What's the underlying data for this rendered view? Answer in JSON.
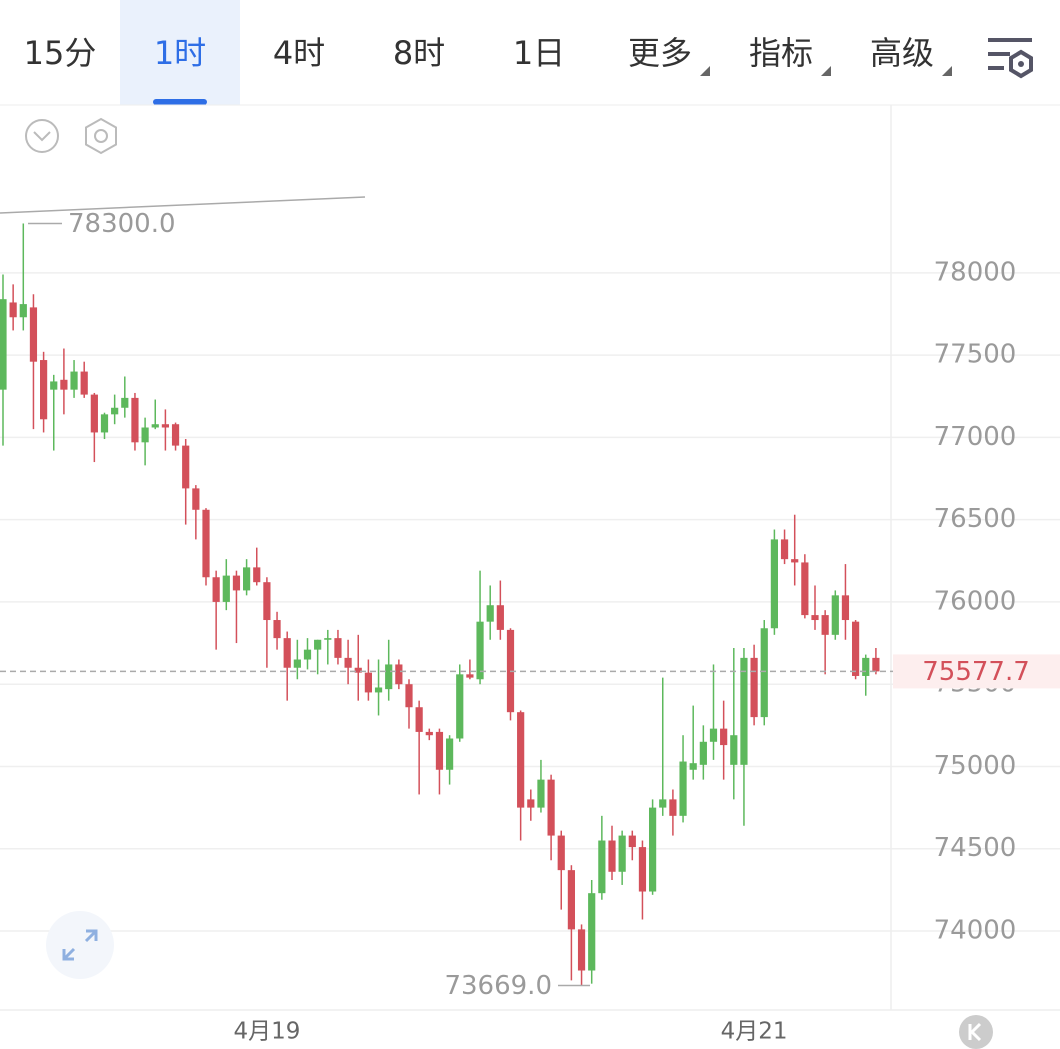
{
  "toolbar": {
    "tabs": [
      "15分",
      "1时",
      "4时",
      "8时",
      "1日",
      "更多",
      "指标",
      "高级"
    ],
    "active": 1
  },
  "chart_data": {
    "type": "candlestick",
    "categories": [
      null,
      null,
      null,
      null,
      null,
      null,
      null,
      null,
      null,
      null,
      null,
      null,
      null,
      null,
      null,
      null,
      null,
      null,
      null,
      null,
      null,
      null,
      null,
      null,
      null,
      null,
      "4月19",
      null,
      null,
      null,
      null,
      null,
      null,
      null,
      null,
      null,
      null,
      null,
      null,
      null,
      null,
      null,
      null,
      null,
      null,
      null,
      null,
      null,
      null,
      null,
      null,
      null,
      null,
      null,
      null,
      null,
      null,
      null,
      null,
      null,
      null,
      null,
      null,
      null,
      null,
      null,
      null,
      null,
      null,
      null,
      null,
      null,
      null,
      null,
      "4月21",
      null,
      null,
      null,
      null,
      null,
      null,
      null,
      null,
      null,
      null,
      null,
      null
    ],
    "open": [
      77290,
      77820,
      77730,
      77790,
      77470,
      77290,
      77350,
      77290,
      77400,
      77260,
      77030,
      77140,
      77180,
      77240,
      76970,
      77060,
      77080,
      77080,
      76950,
      76690,
      76560,
      76150,
      76000,
      76160,
      76070,
      76210,
      76120,
      75890,
      75780,
      75600,
      75650,
      75710,
      75770,
      75780,
      75660,
      75600,
      75570,
      75450,
      75470,
      75620,
      75500,
      75360,
      75210,
      75210,
      74980,
      75170,
      75560,
      75530,
      75880,
      75980,
      75830,
      75330,
      74800,
      74750,
      74920,
      74580,
      74370,
      74010,
      73760,
      74230,
      74550,
      74360,
      74580,
      74510,
      74240,
      74750,
      74800,
      74700,
      74980,
      75010,
      75150,
      75230,
      75010,
      75010,
      75660,
      75300,
      75840,
      76380,
      76260,
      76240,
      75920,
      75920,
      75800,
      76040,
      75880,
      75550,
      75660
    ],
    "high": [
      77990,
      77930,
      78300,
      77870,
      77520,
      77380,
      77540,
      77470,
      77460,
      77270,
      77150,
      77260,
      77370,
      77270,
      77120,
      77230,
      77170,
      77090,
      76990,
      76710,
      76570,
      76190,
      76260,
      76190,
      76260,
      76330,
      76150,
      75940,
      75820,
      75770,
      75780,
      75770,
      75830,
      75830,
      75770,
      75800,
      75650,
      75650,
      75770,
      75650,
      75530,
      75400,
      75230,
      75230,
      75190,
      75620,
      75650,
      76190,
      76100,
      76130,
      75840,
      75340,
      74860,
      75040,
      74950,
      74610,
      74400,
      74040,
      74310,
      74700,
      74640,
      74610,
      74610,
      74550,
      74800,
      75540,
      74860,
      75190,
      75370,
      75250,
      75620,
      75400,
      75720,
      75720,
      75740,
      75890,
      76440,
      76440,
      76530,
      76290,
      76100,
      75950,
      76070,
      76230,
      75890,
      75680,
      75720
    ],
    "low": [
      76950,
      77650,
      77650,
      77050,
      77030,
      76920,
      77140,
      77240,
      77240,
      76850,
      76990,
      77080,
      77120,
      76920,
      76830,
      77050,
      76920,
      76920,
      76470,
      76380,
      76100,
      75710,
      75950,
      75750,
      76040,
      76100,
      75600,
      75710,
      75400,
      75530,
      75590,
      75560,
      75620,
      75620,
      75500,
      75400,
      75400,
      75310,
      75400,
      75470,
      75230,
      74830,
      75160,
      74830,
      74890,
      75150,
      75530,
      75500,
      75770,
      75770,
      75280,
      74550,
      74670,
      74720,
      74430,
      74130,
      73700,
      73669,
      73680,
      74190,
      74310,
      74280,
      74430,
      74070,
      74220,
      74700,
      74580,
      74660,
      74920,
      74920,
      75040,
      74920,
      74800,
      74640,
      75250,
      75250,
      75800,
      76230,
      76100,
      75900,
      75830,
      75560,
      75770,
      75770,
      75530,
      75430,
      75560
    ],
    "close": [
      77840,
      77730,
      77810,
      77460,
      77110,
      77340,
      77290,
      77400,
      77260,
      77030,
      77140,
      77180,
      77240,
      76970,
      77060,
      77080,
      77060,
      76950,
      76690,
      76560,
      76150,
      76000,
      76160,
      76070,
      76210,
      76120,
      75890,
      75780,
      75600,
      75650,
      75710,
      75770,
      75780,
      75660,
      75600,
      75570,
      75450,
      75480,
      75620,
      75500,
      75360,
      75210,
      75190,
      74980,
      75170,
      75560,
      75540,
      75880,
      75980,
      75830,
      75330,
      74750,
      74750,
      74920,
      74580,
      74370,
      74010,
      73760,
      74230,
      74550,
      74360,
      74580,
      74510,
      74240,
      74750,
      74800,
      74700,
      75030,
      75020,
      75150,
      75230,
      75130,
      75190,
      75660,
      75300,
      75840,
      76380,
      76260,
      76240,
      75920,
      75890,
      75800,
      76040,
      75890,
      75550,
      75660,
      75577.7
    ],
    "up_color": "#5db85c",
    "down_color": "#d3505a",
    "ylim": [
      73520,
      79020
    ],
    "yticks": [
      74000,
      74500,
      75000,
      75500,
      76000,
      76500,
      77000,
      77500,
      78000
    ],
    "grid": true,
    "current_price": 75577.7,
    "annotations": [
      {
        "value": 78300,
        "label": "78300.0"
      },
      {
        "value": 73669,
        "label": "73669.0"
      }
    ]
  }
}
